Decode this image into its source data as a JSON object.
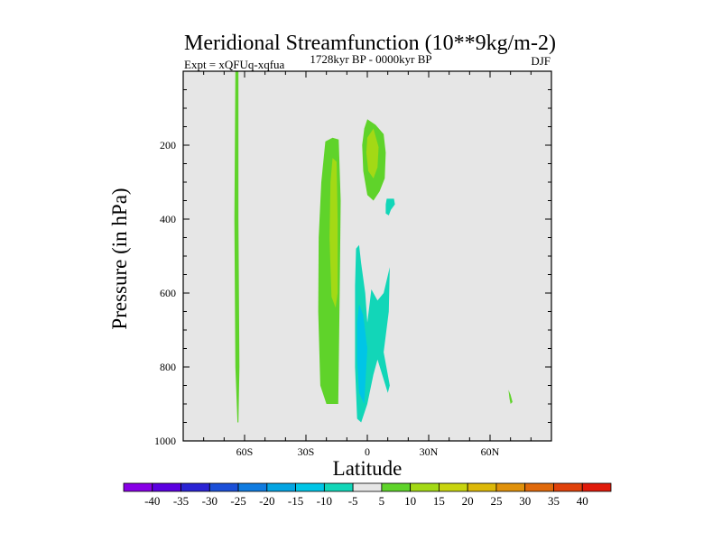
{
  "chart_data": {
    "type": "contour",
    "title": "Meridional Streamfunction (10**9kg/m-2)",
    "subtitle_left": "Expt = xQFUq-xqfua",
    "subtitle_center": "1728kyr BP - 0000kyr BP",
    "subtitle_right": "DJF",
    "xlabel": "Latitude",
    "ylabel": "Pressure (in hPa)",
    "xlim": [
      -90,
      90
    ],
    "ylim": [
      1000,
      0
    ],
    "x_ticks": [
      {
        "value": -60,
        "label": "60S"
      },
      {
        "value": -30,
        "label": "30S"
      },
      {
        "value": 0,
        "label": "0"
      },
      {
        "value": 30,
        "label": "30N"
      },
      {
        "value": 60,
        "label": "60N"
      }
    ],
    "y_ticks": [
      {
        "value": 200,
        "label": "200"
      },
      {
        "value": 400,
        "label": "400"
      },
      {
        "value": 600,
        "label": "600"
      },
      {
        "value": 800,
        "label": "800"
      },
      {
        "value": 1000,
        "label": "1000"
      }
    ],
    "background_color": "#e6e6e6",
    "regions": [
      {
        "name": "southern-cell-60S",
        "level": 5,
        "color": "#5fd32a",
        "points": [
          [
            -64.5,
            0
          ],
          [
            -63,
            0
          ],
          [
            -63,
            400
          ],
          [
            -62.5,
            800
          ],
          [
            -63,
            950
          ],
          [
            -63.5,
            950
          ],
          [
            -64.5,
            800
          ],
          [
            -65,
            400
          ]
        ]
      },
      {
        "name": "southern-cell-subtropics",
        "level": 5,
        "color": "#5fd32a",
        "points": [
          [
            -17,
            180
          ],
          [
            -14,
            185
          ],
          [
            -13,
            350
          ],
          [
            -13.5,
            600
          ],
          [
            -14.2,
            900
          ],
          [
            -20,
            900
          ],
          [
            -23,
            850
          ],
          [
            -24,
            650
          ],
          [
            -23.8,
            450
          ],
          [
            -22.5,
            300
          ],
          [
            -20.5,
            190
          ]
        ]
      },
      {
        "name": "southern-cell-subtropics-core",
        "level": 10,
        "color": "#a3d915",
        "points": [
          [
            -17,
            235
          ],
          [
            -15,
            245
          ],
          [
            -14.5,
            400
          ],
          [
            -14.5,
            600
          ],
          [
            -15.5,
            640
          ],
          [
            -17.5,
            610
          ],
          [
            -18.5,
            450
          ],
          [
            -18,
            300
          ]
        ]
      },
      {
        "name": "upper-equatorial-cell",
        "level": 5,
        "color": "#5fd32a",
        "points": [
          [
            -1.5,
            155
          ],
          [
            0,
            130
          ],
          [
            4,
            145
          ],
          [
            8,
            170
          ],
          [
            9,
            220
          ],
          [
            8.5,
            290
          ],
          [
            6,
            325
          ],
          [
            3,
            350
          ],
          [
            0,
            335
          ],
          [
            -2,
            270
          ],
          [
            -2.5,
            200
          ]
        ]
      },
      {
        "name": "upper-equatorial-cell-core",
        "level": 10,
        "color": "#a3d915",
        "points": [
          [
            0,
            180
          ],
          [
            3,
            155
          ],
          [
            5.5,
            205
          ],
          [
            5,
            260
          ],
          [
            3,
            290
          ],
          [
            0.5,
            270
          ],
          [
            -0.5,
            220
          ]
        ]
      },
      {
        "name": "equatorial-negative-cell",
        "level": -5,
        "color": "#12d6b8",
        "points": [
          [
            -6,
            580
          ],
          [
            -5.5,
            480
          ],
          [
            -4,
            470
          ],
          [
            -3,
            520
          ],
          [
            -1,
            600
          ],
          [
            0,
            680
          ],
          [
            2,
            590
          ],
          [
            5,
            620
          ],
          [
            8,
            600
          ],
          [
            11,
            530
          ],
          [
            10.5,
            650
          ],
          [
            8,
            760
          ],
          [
            11,
            850
          ],
          [
            10,
            870
          ],
          [
            5,
            780
          ],
          [
            3,
            820
          ],
          [
            0,
            900
          ],
          [
            -3,
            950
          ],
          [
            -5,
            940
          ],
          [
            -6,
            800
          ]
        ]
      },
      {
        "name": "equatorial-negative-cell-core",
        "level": -10,
        "color": "#00c5e6",
        "points": [
          [
            -5,
            680
          ],
          [
            -4,
            630
          ],
          [
            -2,
            660
          ],
          [
            0,
            750
          ],
          [
            -1.5,
            900
          ],
          [
            -4,
            870
          ],
          [
            -5,
            780
          ]
        ]
      },
      {
        "name": "small-negative-cell-10N",
        "level": -5,
        "color": "#12d6b8",
        "points": [
          [
            9.5,
            345
          ],
          [
            13,
            345
          ],
          [
            13.5,
            360
          ],
          [
            11.5,
            375
          ],
          [
            10.5,
            390
          ],
          [
            9,
            385
          ],
          [
            9,
            360
          ]
        ]
      },
      {
        "name": "small-positive-cell-70N",
        "level": 5,
        "color": "#5fd32a",
        "points": [
          [
            69,
            862
          ],
          [
            70,
            875
          ],
          [
            71,
            895
          ],
          [
            70,
            900
          ],
          [
            69.5,
            885
          ]
        ]
      }
    ],
    "colorbar": {
      "levels": [
        "-40",
        "-35",
        "-30",
        "-25",
        "-20",
        "-15",
        "-10",
        "-5",
        "5",
        "10",
        "15",
        "20",
        "25",
        "30",
        "35",
        "40"
      ],
      "colors": [
        "#8800e6",
        "#5b00e0",
        "#2a23d4",
        "#1b4fd8",
        "#0f7be0",
        "#03a4e2",
        "#00c5e6",
        "#12d6b8",
        "#e6e6e6",
        "#5fd32a",
        "#a3d915",
        "#c8d40e",
        "#dcb808",
        "#e0910a",
        "#e0690a",
        "#e0410a",
        "#e01a0a"
      ]
    }
  }
}
